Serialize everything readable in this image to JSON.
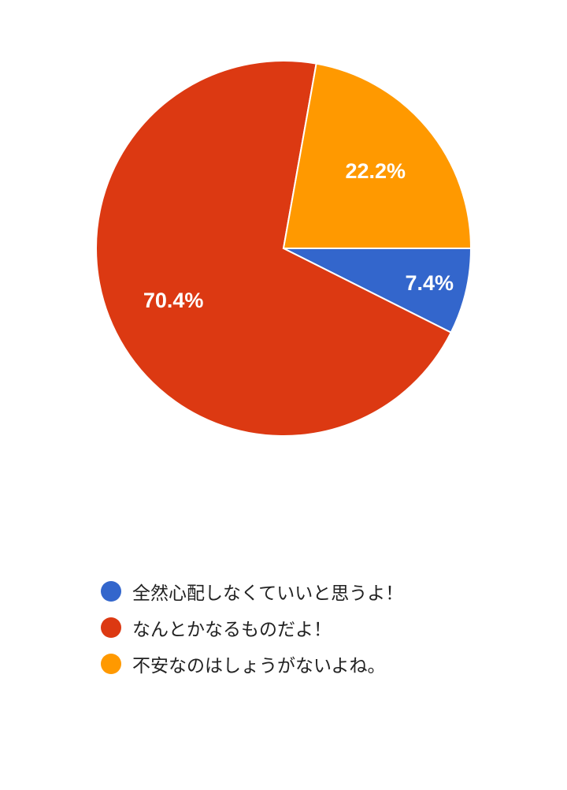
{
  "chart_data": {
    "type": "pie",
    "title": "",
    "series": [
      {
        "values": [
          7.4,
          70.4,
          22.2
        ]
      }
    ],
    "categories": [
      "全然心配しなくていいと思うよ！",
      "なんとかなるものだよ！",
      "不安なのはしょうがないよね。"
    ],
    "value_labels": [
      "7.4%",
      "70.4%",
      "22.2%"
    ],
    "colors": [
      "#3366cc",
      "#dc3912",
      "#ff9900"
    ],
    "legend_position": "bottom-left",
    "start_angle_deg": 0,
    "direction": "clockwise"
  }
}
